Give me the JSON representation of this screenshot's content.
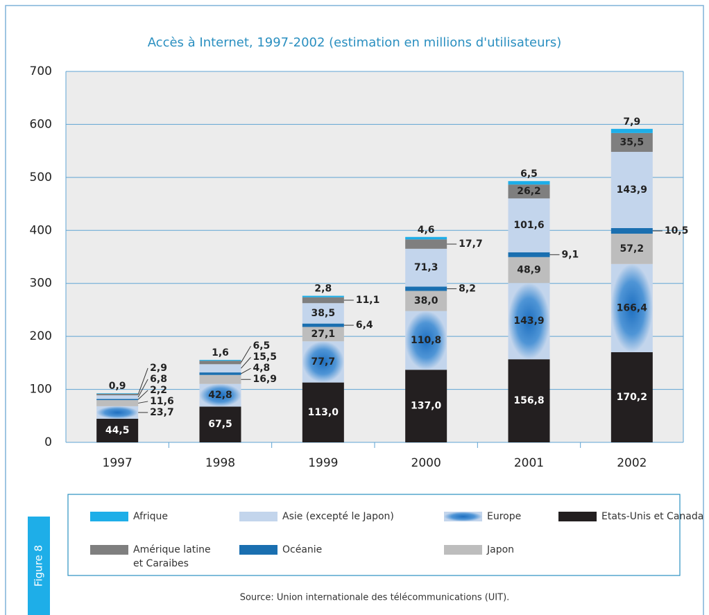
{
  "chart_data": {
    "type": "stacked_bar",
    "title": "Accès à Internet, 1997-2002 (estimation en millions d'utilisateurs)",
    "categories": [
      "1997",
      "1998",
      "1999",
      "2000",
      "2001",
      "2002"
    ],
    "ylim": [
      0,
      700
    ],
    "yticks": [
      0,
      100,
      200,
      300,
      400,
      500,
      600,
      700
    ],
    "grid": true,
    "series": [
      {
        "name": "Etats-Unis et Canada",
        "color": "#231f20",
        "values": [
          44.5,
          67.5,
          113.0,
          137.0,
          156.8,
          170.2
        ],
        "value_labels": [
          "44,5",
          "67,5",
          "113,0",
          "137,0",
          "156,8",
          "170,2"
        ]
      },
      {
        "name": "Europe",
        "color": "#2b7cc3",
        "values": [
          23.7,
          42.8,
          77.7,
          110.8,
          143.9,
          166.4
        ],
        "value_labels": [
          "23,7",
          "42,8",
          "77,7",
          "110,8",
          "143,9",
          "166,4"
        ]
      },
      {
        "name": "Japon",
        "color": "#bdbdbd",
        "values": [
          11.6,
          16.9,
          27.1,
          38.0,
          48.9,
          57.2
        ],
        "value_labels": [
          "11,6",
          "16,9",
          "27,1",
          "38,0",
          "48,9",
          "57,2"
        ]
      },
      {
        "name": "Océanie",
        "color": "#1a6fb0",
        "values": [
          2.2,
          4.8,
          6.4,
          8.2,
          9.1,
          10.5
        ],
        "value_labels": [
          "2,2",
          "4,8",
          "6,4",
          "8,2",
          "9,1",
          "10,5"
        ]
      },
      {
        "name": "Asie (excepté le Japon)",
        "color": "#c3d5ec",
        "values": [
          6.8,
          15.5,
          38.5,
          71.3,
          101.6,
          143.9
        ],
        "value_labels": [
          "6,8",
          "15,5",
          "38,5",
          "71,3",
          "101,6",
          "143,9"
        ]
      },
      {
        "name": "Amérique latine et Caraibes",
        "color": "#7f7f7f",
        "values": [
          2.9,
          6.5,
          11.1,
          17.7,
          26.2,
          35.5
        ],
        "value_labels": [
          "2,9",
          "6,5",
          "11,1",
          "17,7",
          "26,2",
          "35,5"
        ]
      },
      {
        "name": "Afrique",
        "color": "#1eaee8",
        "values": [
          0.9,
          1.6,
          2.8,
          4.6,
          6.5,
          7.9
        ],
        "value_labels": [
          "0,9",
          "1,6",
          "2,8",
          "4,6",
          "6,5",
          "7,9"
        ]
      }
    ],
    "source": "Source: Union internationale des télécommunications (UIT).",
    "figure_label": "Figure 8"
  }
}
